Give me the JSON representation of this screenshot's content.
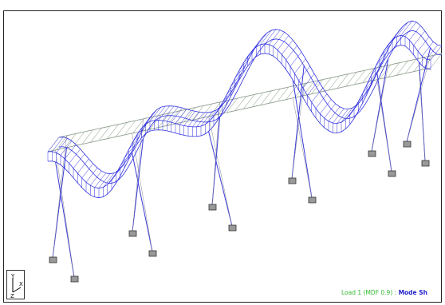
{
  "status": {
    "load": "Load 1 (MDF 0.9) :",
    "mode": "Mode Sh"
  },
  "axes": {
    "y": "Y",
    "x": "X",
    "z": "Z"
  }
}
